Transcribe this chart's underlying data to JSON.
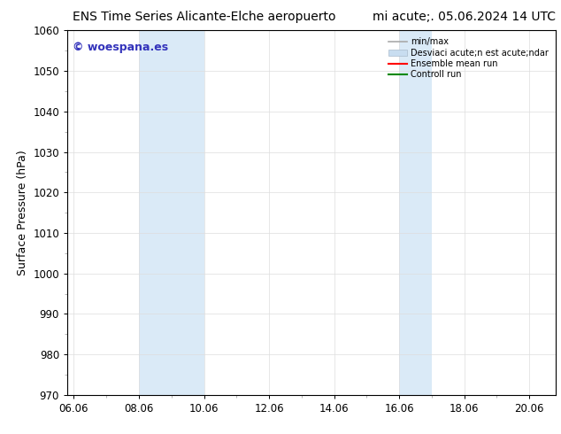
{
  "title_left": "ENS Time Series Alicante-Elche aeropuerto",
  "title_right": "mi acute;. 05.06.2024 14 UTC",
  "ylabel": "Surface Pressure (hPa)",
  "ylim": [
    970,
    1060
  ],
  "yticks": [
    970,
    980,
    990,
    1000,
    1010,
    1020,
    1030,
    1040,
    1050,
    1060
  ],
  "xlim_start": 5.8,
  "xlim_end": 20.8,
  "xtick_labels": [
    "06.06",
    "08.06",
    "10.06",
    "12.06",
    "14.06",
    "16.06",
    "18.06",
    "20.06"
  ],
  "xtick_positions": [
    6.0,
    8.0,
    10.0,
    12.0,
    14.0,
    16.0,
    18.0,
    20.0
  ],
  "shaded_bands": [
    {
      "x_start": 8.0,
      "x_end": 10.0
    },
    {
      "x_start": 16.0,
      "x_end": 17.0
    }
  ],
  "shaded_color": "#daeaf7",
  "watermark_text": "© woespana.es",
  "watermark_color": "#3333bb",
  "legend_label_minmax": "min/max",
  "legend_label_desv": "Desviaci acute;n est acute;ndar",
  "legend_label_ensemble": "Ensemble mean run",
  "legend_label_control": "Controll run",
  "legend_color_minmax": "#aaaaaa",
  "legend_color_desv": "#c8ddf0",
  "legend_color_ensemble": "#ff0000",
  "legend_color_control": "#008800",
  "bg_color": "#ffffff",
  "grid_color": "#dddddd",
  "title_fontsize": 10,
  "tick_fontsize": 8.5,
  "label_fontsize": 9,
  "watermark_fontsize": 9
}
